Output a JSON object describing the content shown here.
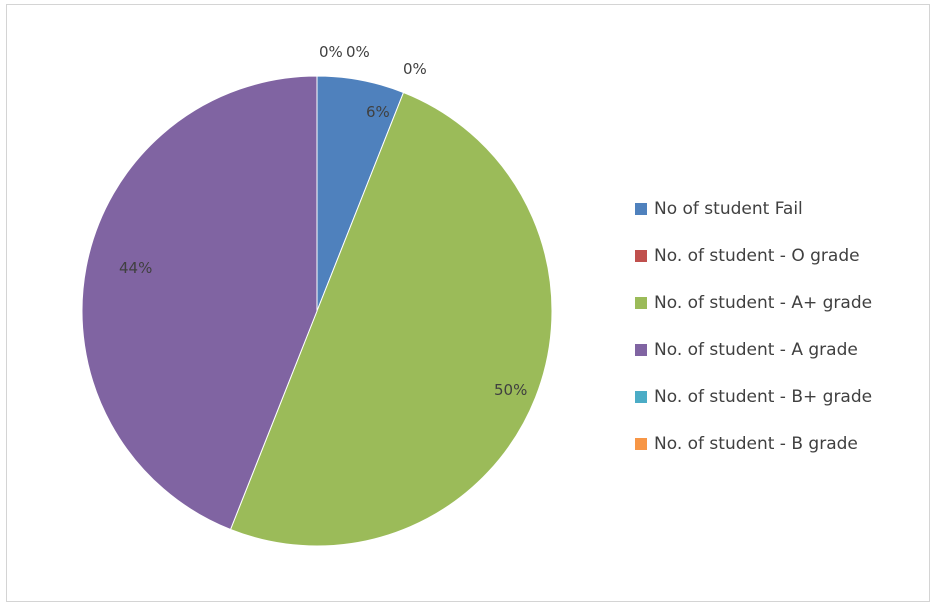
{
  "chart_data": {
    "type": "pie",
    "title": "",
    "slices": [
      {
        "label": "No of student Fail",
        "value": 6,
        "display": "6%",
        "color": "#4f81bd"
      },
      {
        "label": "No. of student - O grade",
        "value": 0,
        "display": "0%",
        "color": "#c0504d"
      },
      {
        "label": "No. of student - A+ grade",
        "value": 50,
        "display": "50%",
        "color": "#9bbb59"
      },
      {
        "label": "No. of student - A grade",
        "value": 44,
        "display": "44%",
        "color": "#8064a2"
      },
      {
        "label": "No. of student - B+ grade",
        "value": 0,
        "display": "0%",
        "color": "#4bacc6"
      },
      {
        "label": "No. of student - B grade",
        "value": 0,
        "display": "0%",
        "color": "#f79646"
      }
    ],
    "legend_position": "right",
    "data_labels": "percent"
  }
}
